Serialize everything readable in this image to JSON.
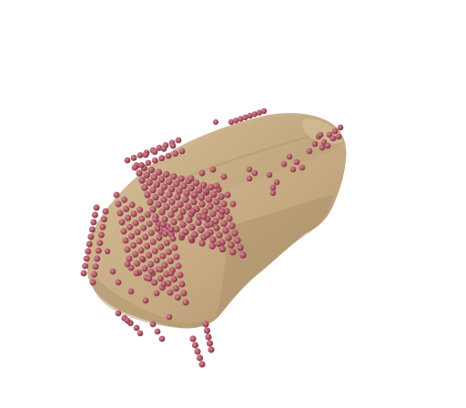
{
  "scene": {
    "subject": "car-mesh-with-point-cloud",
    "background_color": "#ffffff",
    "mesh_color": "#c8ad86",
    "mesh_shadow_color": "#a88f6a",
    "mesh_highlight_color": "#d8c29c",
    "point_color": "#b45a6a",
    "point_highlight_color": "#d48898",
    "point_shadow_color": "#8a3d4c"
  }
}
